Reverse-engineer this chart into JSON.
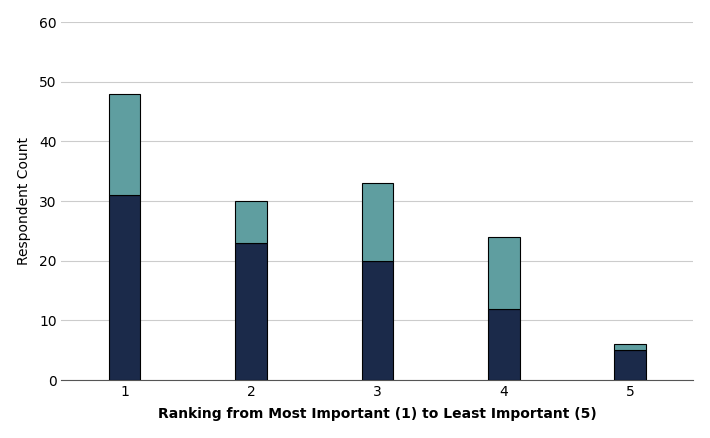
{
  "categories": [
    1,
    2,
    3,
    4,
    5
  ],
  "bottom_values": [
    31,
    23,
    20,
    12,
    5
  ],
  "top_values": [
    17,
    7,
    13,
    12,
    1
  ],
  "bottom_color": "#1b2a4a",
  "top_color": "#5f9ea0",
  "xlabel": "Ranking from Most Important (1) to Least Important (5)",
  "ylabel": "Respondent Count",
  "ylim": [
    0,
    60
  ],
  "yticks": [
    0,
    10,
    20,
    30,
    40,
    50,
    60
  ],
  "background_color": "#ffffff",
  "bar_width": 0.25,
  "edge_color": "#000000",
  "grid_color": "#cccccc",
  "xlabel_fontsize": 10,
  "ylabel_fontsize": 10,
  "tick_fontsize": 10,
  "xlabel_bold": true,
  "ylabel_bold": false
}
